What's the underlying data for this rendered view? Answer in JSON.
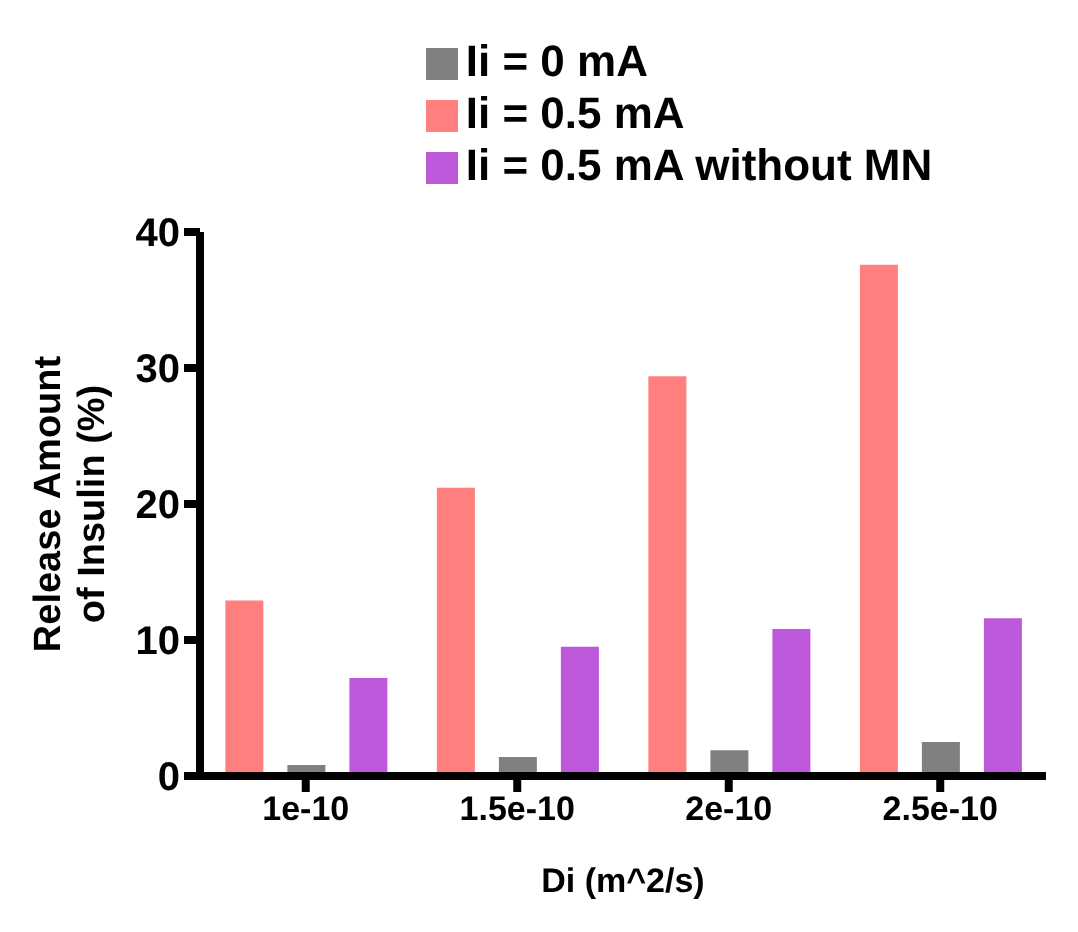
{
  "chart_data": {
    "type": "bar",
    "xlabel": "Di (m^2/s)",
    "ylabel": "Release Amount of Insulin (%)",
    "categories": [
      "1e-10",
      "1.5e-10",
      "2e-10",
      "2.5e-10"
    ],
    "series": [
      {
        "name": "Ii = 0.5 mA",
        "color": "#ff7f7f",
        "values": [
          12.9,
          21.2,
          29.4,
          37.6
        ]
      },
      {
        "name": "Ii = 0 mA",
        "color": "#808080",
        "values": [
          0.8,
          1.4,
          1.9,
          2.5
        ]
      },
      {
        "name": "Ii = 0.5 mA without MN",
        "color": "#bc58d9",
        "values": [
          7.2,
          9.5,
          10.8,
          11.6
        ]
      }
    ],
    "ylim": [
      0,
      40
    ],
    "yticks": [
      0,
      10,
      20,
      30,
      40
    ],
    "grid": false,
    "legend": "top"
  }
}
